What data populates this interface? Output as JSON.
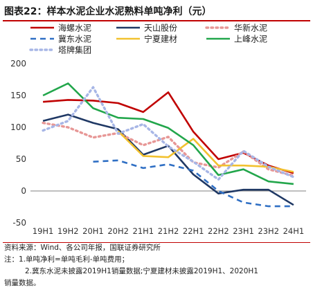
{
  "title": "图表22：样本水泥企业水泥熟料单吨净利（元）",
  "notes": {
    "source": "资料来源：Wind、各公司年报，国联证券研究所",
    "note1": "注：1.单吨净利=单吨毛利-单吨费用；",
    "note2": "2.冀东水泥未披露2019H1销量数据;宁夏建材未披露2019H1、2020H1",
    "note3": "销量数据。"
  },
  "chart_data": {
    "type": "line",
    "categories": [
      "19H1",
      "19H2",
      "20H1",
      "20H2",
      "21H1",
      "21H2",
      "22H1",
      "22H2",
      "23H1",
      "23H2",
      "24H1"
    ],
    "ylim": [
      -50,
      200
    ],
    "yticks": [
      -50,
      0,
      50,
      100,
      150,
      200
    ],
    "legend_placement": "top",
    "series": [
      {
        "name": "海螺水泥",
        "color": "#c00000",
        "dash": "solid",
        "values": [
          140,
          143,
          142,
          138,
          124,
          155,
          93,
          50,
          60,
          40,
          28
        ]
      },
      {
        "name": "天山股份",
        "color": "#1f3864",
        "dash": "solid",
        "values": [
          110,
          120,
          107,
          97,
          57,
          71,
          26,
          -4,
          2,
          2,
          -22
        ]
      },
      {
        "name": "华新水泥",
        "color": "#e79796",
        "dash": "dotted",
        "values": [
          107,
          100,
          84,
          91,
          72,
          85,
          45,
          37,
          62,
          34,
          24
        ]
      },
      {
        "name": "冀东水泥",
        "color": "#2f6fc4",
        "dash": "dashed",
        "values": [
          null,
          null,
          46,
          48,
          36,
          42,
          32,
          0,
          -18,
          -24,
          -24
        ]
      },
      {
        "name": "宁夏建材",
        "color": "#f2c12e",
        "dash": "solid",
        "values": [
          null,
          null,
          null,
          94,
          55,
          53,
          82,
          40,
          40,
          38,
          30
        ]
      },
      {
        "name": "上峰水泥",
        "color": "#22a64b",
        "dash": "solid",
        "values": [
          150,
          169,
          130,
          115,
          113,
          99,
          72,
          25,
          34,
          15,
          11
        ]
      },
      {
        "name": "塔牌集团",
        "color": "#a7b6e6",
        "dash": "dotted",
        "values": [
          95,
          110,
          163,
          90,
          105,
          70,
          46,
          18,
          63,
          38,
          22
        ]
      }
    ]
  }
}
